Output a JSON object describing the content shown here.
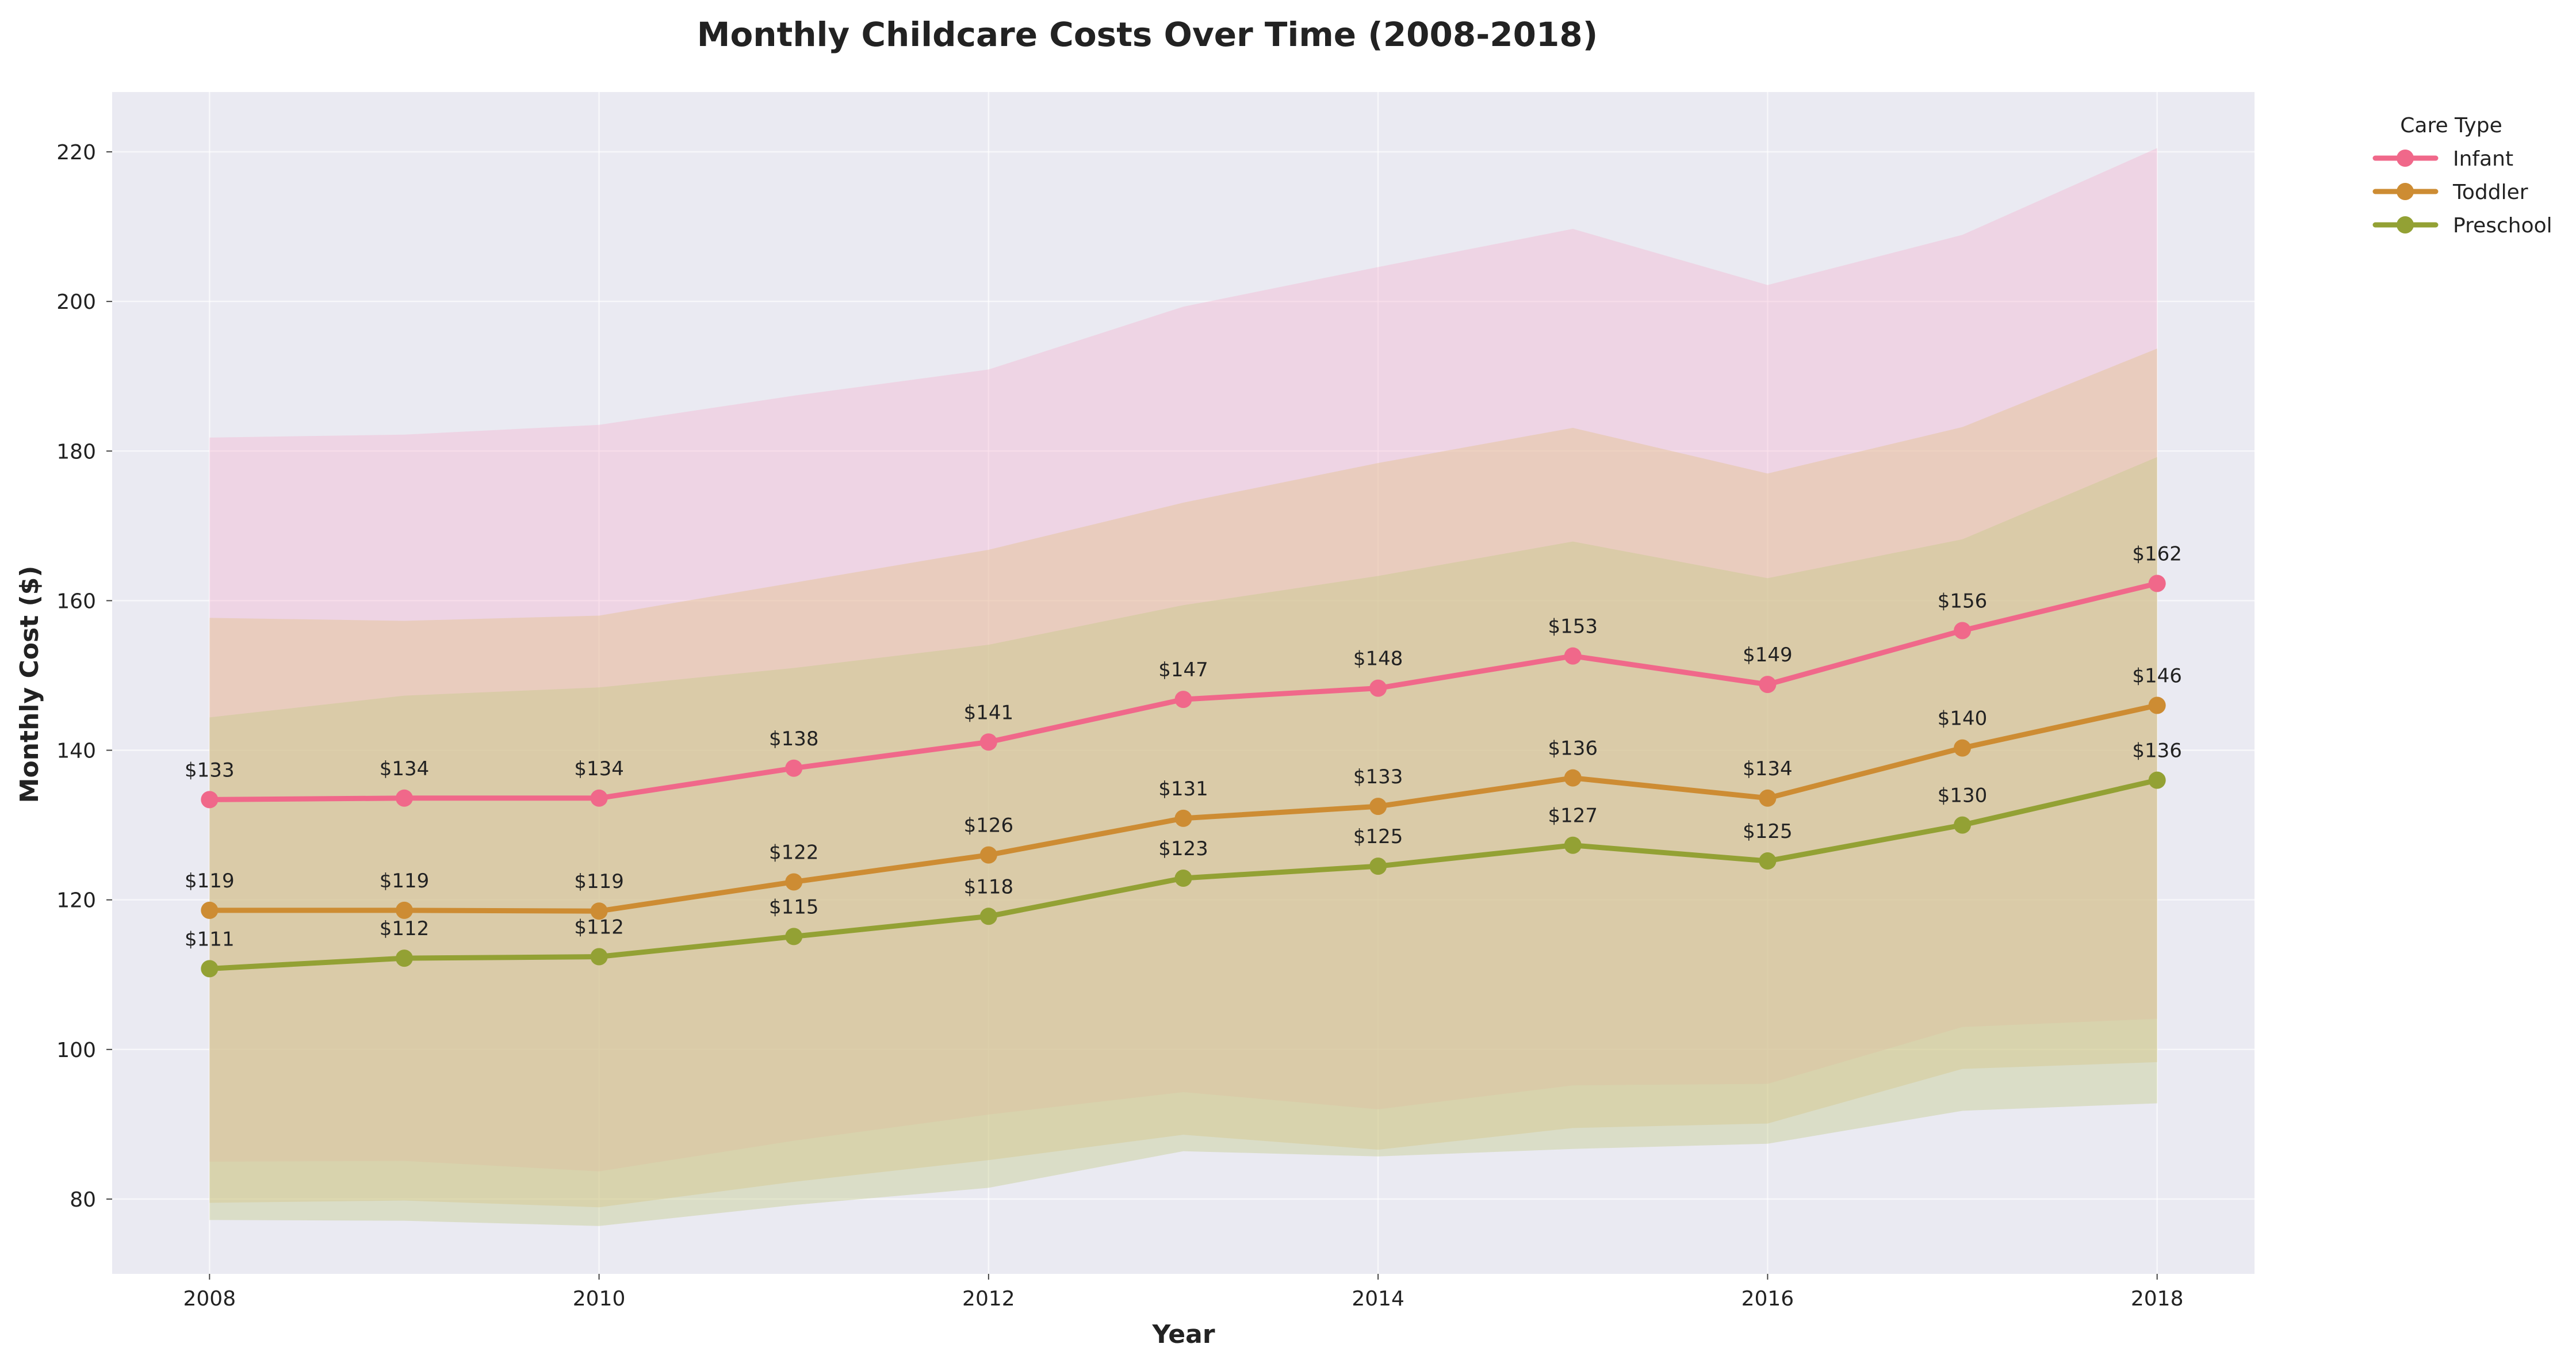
{
  "chart_data": {
    "type": "line",
    "title": "Monthly Childcare Costs Over Time (2008-2018)",
    "xlabel": "Year",
    "ylabel": "Monthly Cost ($)",
    "x": [
      2008,
      2009,
      2010,
      2011,
      2012,
      2013,
      2014,
      2015,
      2016,
      2017,
      2018
    ],
    "xlim": [
      2007.5,
      2018.5
    ],
    "ylim": [
      70,
      228
    ],
    "xticks": [
      2008,
      2010,
      2012,
      2014,
      2016,
      2018
    ],
    "yticks": [
      80,
      100,
      120,
      140,
      160,
      180,
      200,
      220
    ],
    "grid": true,
    "legend_title": "Care Type",
    "legend_position": "outside-top-right",
    "series": [
      {
        "name": "Infant",
        "color": "#f0688a",
        "band_color": "#f5b5cf",
        "values": [
          133.4,
          133.6,
          133.6,
          137.6,
          141.1,
          146.8,
          148.3,
          152.6,
          148.8,
          156.0,
          162.3
        ],
        "labels": [
          "$133",
          "$134",
          "$134",
          "$138",
          "$141",
          "$147",
          "$148",
          "$153",
          "$149",
          "$156",
          "$162"
        ],
        "upper": [
          181.8,
          182.2,
          183.5,
          187.4,
          190.9,
          199.3,
          204.6,
          209.7,
          202.2,
          208.9,
          220.5
        ],
        "lower": [
          85.0,
          85.1,
          83.7,
          87.8,
          91.3,
          94.3,
          92.0,
          95.2,
          95.4,
          103.0,
          104.1
        ]
      },
      {
        "name": "Toddler",
        "color": "#cd8c33",
        "band_color": "#e2c084",
        "values": [
          118.6,
          118.6,
          118.5,
          122.4,
          126.0,
          130.9,
          132.5,
          136.3,
          133.6,
          140.3,
          146.0
        ],
        "labels": [
          "$119",
          "$119",
          "$119",
          "$122",
          "$126",
          "$131",
          "$133",
          "$136",
          "$134",
          "$140",
          "$146"
        ],
        "upper": [
          157.7,
          157.3,
          158.0,
          162.4,
          166.8,
          173.1,
          178.4,
          183.1,
          177.0,
          183.2,
          193.7
        ],
        "lower": [
          79.5,
          79.8,
          78.9,
          82.3,
          85.2,
          88.6,
          86.6,
          89.5,
          90.1,
          97.4,
          98.3
        ]
      },
      {
        "name": "Preschool",
        "color": "#93a134",
        "band_color": "#c3cb86",
        "values": [
          110.8,
          112.2,
          112.4,
          115.1,
          117.8,
          122.9,
          124.5,
          127.3,
          125.2,
          130.0,
          136.0
        ],
        "labels": [
          "$111",
          "$112",
          "$112",
          "$115",
          "$118",
          "$123",
          "$125",
          "$127",
          "$125",
          "$130",
          "$136"
        ],
        "upper": [
          144.4,
          147.3,
          148.4,
          151.0,
          154.1,
          159.4,
          163.3,
          167.9,
          163.0,
          168.2,
          179.2
        ],
        "lower": [
          77.2,
          77.1,
          76.4,
          79.2,
          81.5,
          86.4,
          85.7,
          86.7,
          87.4,
          91.8,
          92.8
        ]
      }
    ]
  }
}
